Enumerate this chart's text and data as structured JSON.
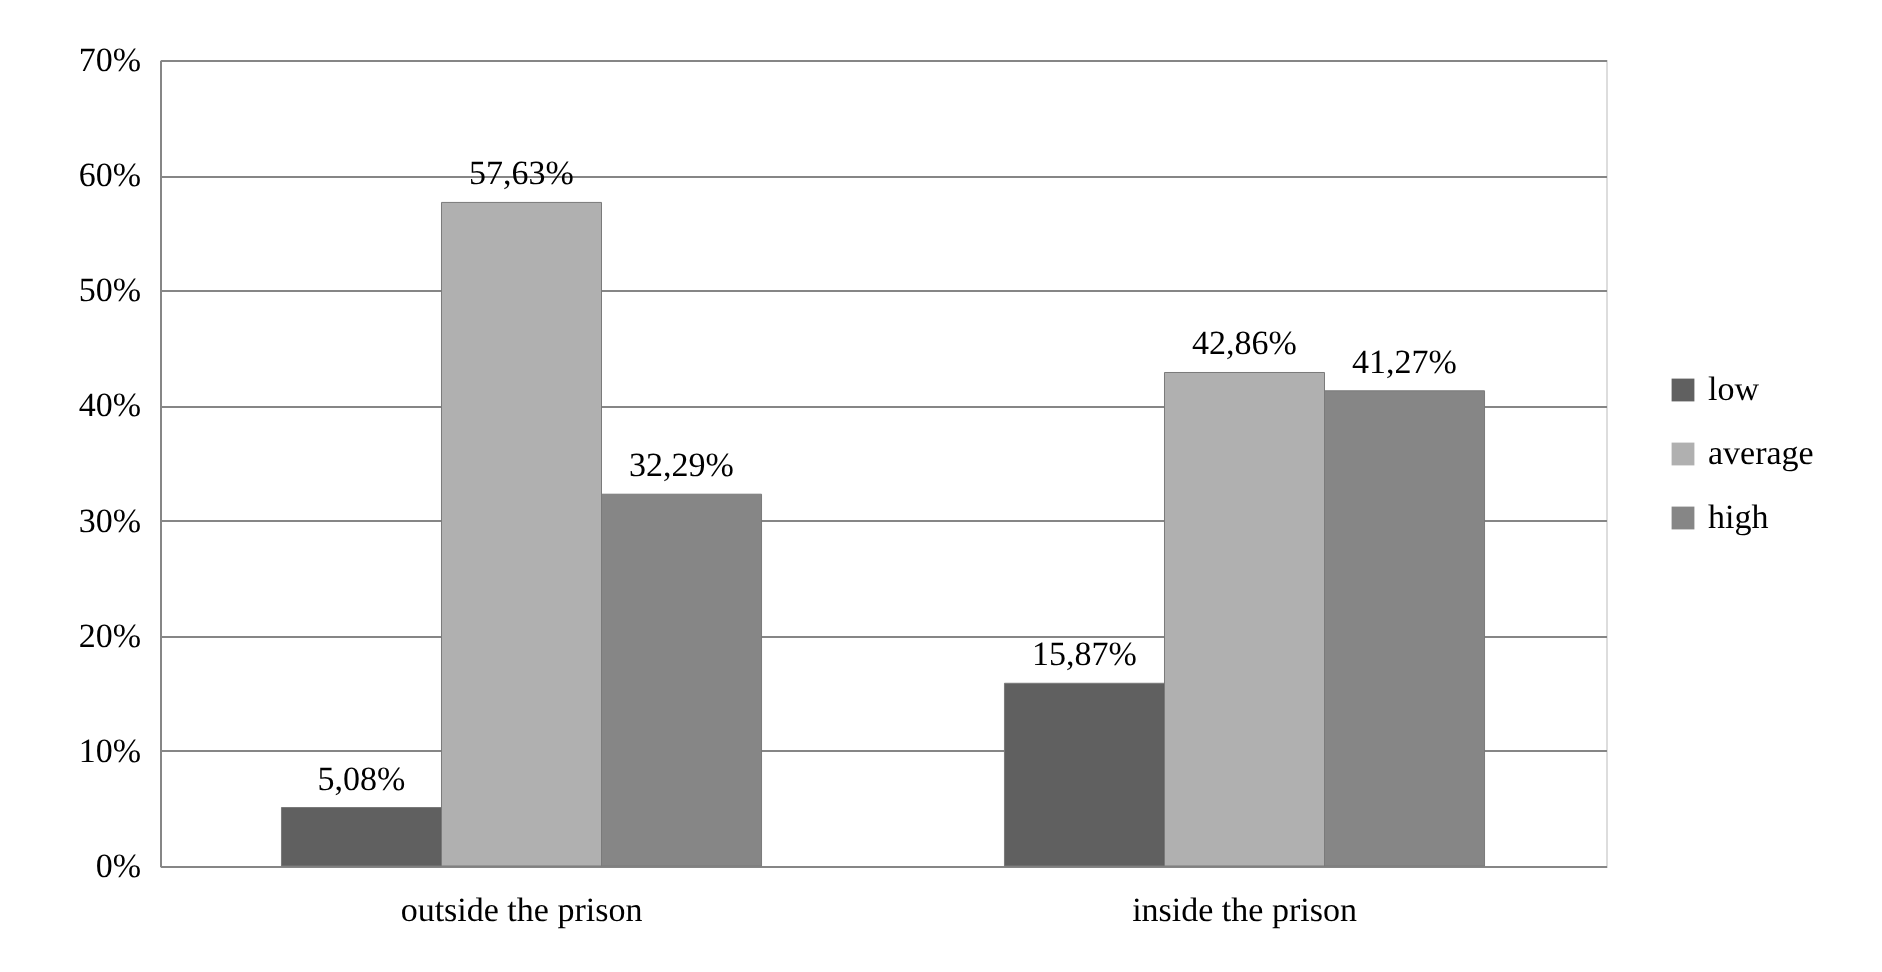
{
  "chart_data": {
    "type": "bar",
    "categories": [
      "outside the prison",
      "inside the prison"
    ],
    "series": [
      {
        "name": "low",
        "color": "#606060",
        "values": [
          5.08,
          15.87
        ],
        "value_labels": [
          "5,08%",
          "15,87%"
        ]
      },
      {
        "name": "average",
        "color": "#b0b0b0",
        "values": [
          57.63,
          42.86
        ],
        "value_labels": [
          "57,63%",
          "42,86%"
        ]
      },
      {
        "name": "high",
        "color": "#868686",
        "values": [
          32.29,
          41.27
        ],
        "value_labels": [
          "32,29%",
          "41,27%"
        ]
      }
    ],
    "ylim": [
      0,
      70
    ],
    "yticks": [
      {
        "value": 0,
        "label": "0%"
      },
      {
        "value": 10,
        "label": "10%"
      },
      {
        "value": 20,
        "label": "20%"
      },
      {
        "value": 30,
        "label": "30%"
      },
      {
        "value": 40,
        "label": "40%"
      },
      {
        "value": 50,
        "label": "50%"
      },
      {
        "value": 60,
        "label": "60%"
      },
      {
        "value": 70,
        "label": "70%"
      }
    ],
    "grid": "y",
    "legend": "right"
  }
}
